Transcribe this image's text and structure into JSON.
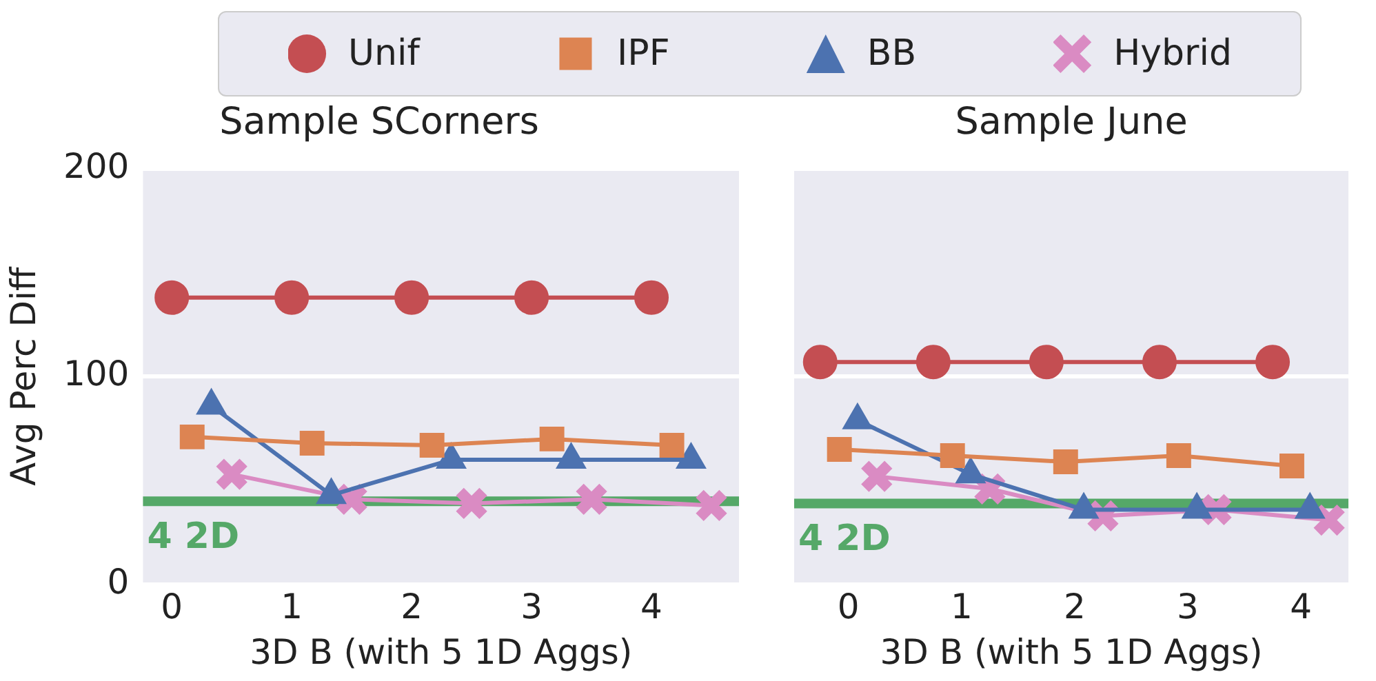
{
  "chart_data": [
    {
      "type": "line",
      "title": "Sample SCorners",
      "xlabel": "3D B (with 5 1D Aggs)",
      "ylabel": "Avg Perc Diff",
      "xlim": [
        -0.24,
        4.73
      ],
      "xticks": [
        0,
        1,
        2,
        3,
        4
      ],
      "ylim": [
        0,
        200
      ],
      "yticks": [
        0,
        100,
        200
      ],
      "grid": "y",
      "legend": "top",
      "series": [
        {
          "name": "Unif",
          "color": "#c44e52",
          "marker": "circle",
          "x": [
            0,
            1,
            2,
            3,
            4
          ],
          "values": [
            138,
            138,
            138,
            138,
            138
          ]
        },
        {
          "name": "IPF",
          "color": "#dd8452",
          "marker": "square",
          "x": [
            0.17,
            1.17,
            2.17,
            3.17,
            4.17
          ],
          "values": [
            71,
            68,
            67,
            70,
            67
          ]
        },
        {
          "name": "BB",
          "color": "#4c72b0",
          "marker": "triangle",
          "x": [
            0.33,
            1.33,
            2.33,
            3.33,
            4.33
          ],
          "values": [
            86,
            43,
            60,
            60,
            60
          ]
        },
        {
          "name": "Hybrid",
          "color": "#da8bc3",
          "marker": "cross",
          "x": [
            0.5,
            1.5,
            2.5,
            3.5,
            4.5
          ],
          "values": [
            53,
            41,
            39,
            41,
            38
          ]
        }
      ],
      "ref_lines": [
        {
          "axis": "y",
          "value": 40,
          "label": "4 2D",
          "color": "#55a868"
        }
      ]
    },
    {
      "type": "line",
      "title": "Sample June",
      "xlabel": "3D B (with 5 1D Aggs)",
      "xlim": [
        -0.48,
        4.42
      ],
      "xticks": [
        0,
        1,
        2,
        3,
        4
      ],
      "ylim": [
        0,
        200
      ],
      "yticks": [
        0,
        100,
        200
      ],
      "grid": "y",
      "tick_labels": "x",
      "series": [
        {
          "color": "#c44e52",
          "marker": "circle",
          "x": [
            -0.25,
            0.75,
            1.75,
            2.75,
            3.75
          ],
          "values": [
            107,
            107,
            107,
            107,
            107
          ]
        },
        {
          "color": "#dd8452",
          "marker": "square",
          "x": [
            -0.08,
            0.92,
            1.92,
            2.92,
            3.92
          ],
          "values": [
            65,
            62,
            59,
            62,
            57
          ]
        },
        {
          "color": "#4c72b0",
          "marker": "triangle",
          "x": [
            0.08,
            1.08,
            2.08,
            3.08,
            4.08
          ],
          "values": [
            79,
            53,
            36,
            36,
            36
          ]
        },
        {
          "color": "#da8bc3",
          "marker": "cross",
          "x": [
            0.25,
            1.25,
            2.25,
            3.25,
            4.25
          ],
          "values": [
            52,
            46,
            33,
            36,
            31
          ]
        }
      ],
      "ref_lines": [
        {
          "axis": "y",
          "value": 39,
          "label": "4 2D",
          "color": "#55a868"
        }
      ]
    }
  ]
}
